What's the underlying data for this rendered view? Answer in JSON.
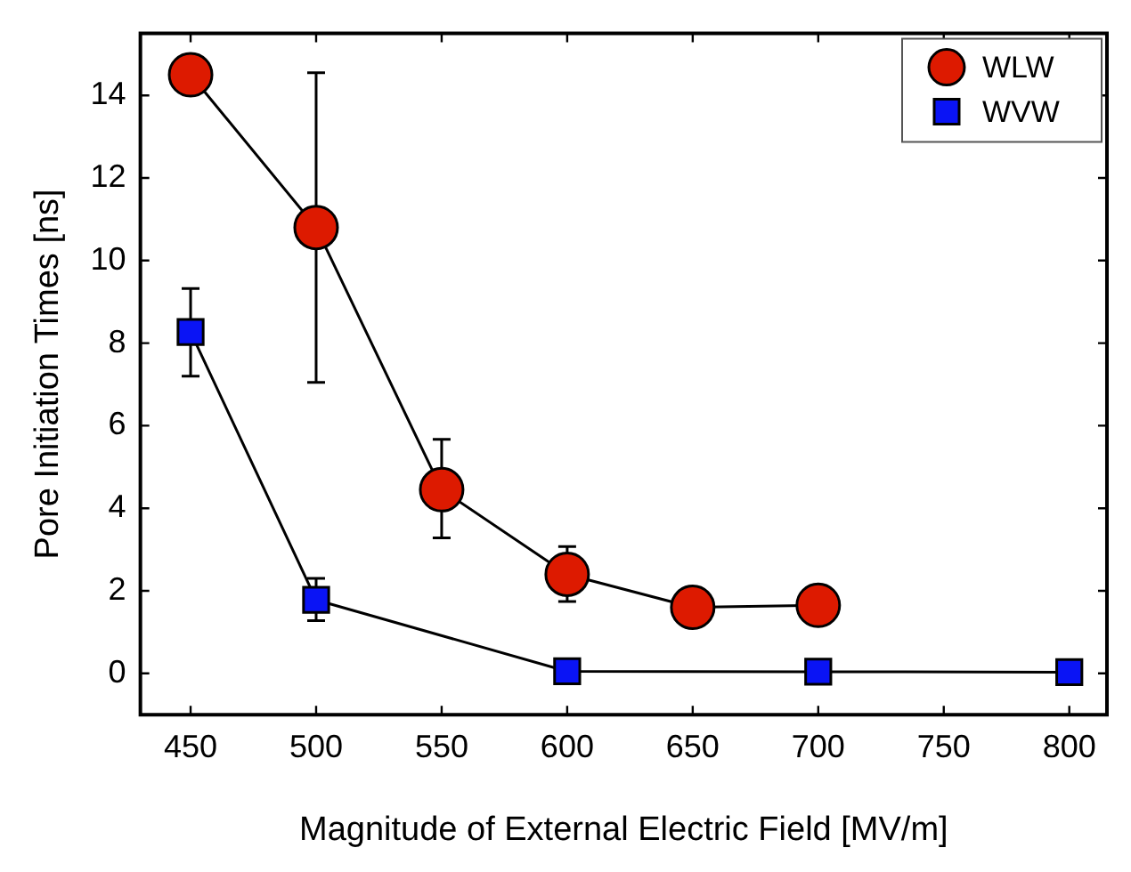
{
  "chart_data": {
    "type": "line",
    "xlabel": "Magnitude of External Electric Field [MV/m]",
    "ylabel": "Pore Initiation Times [ns]",
    "xlim": [
      430,
      815
    ],
    "xticks": [
      450,
      500,
      550,
      600,
      650,
      700,
      750,
      800
    ],
    "ylim": [
      -1,
      15.5
    ],
    "yticks": [
      0,
      2,
      4,
      6,
      8,
      10,
      12,
      14
    ],
    "grid": false,
    "legend": "top right",
    "series": [
      {
        "name": "WLW",
        "color": "#dd1a00",
        "marker": "circle",
        "x": [
          450,
          500,
          550,
          600,
          650,
          700
        ],
        "values": [
          14.5,
          10.8,
          4.45,
          2.4,
          1.6,
          1.65
        ],
        "errors": [
          null,
          [
            7.05,
            14.55
          ],
          [
            3.28,
            5.67
          ],
          [
            1.74,
            3.07
          ],
          null,
          null
        ]
      },
      {
        "name": "WVW",
        "color": "#0a14f5",
        "marker": "square",
        "x": [
          450,
          500,
          600,
          700,
          800
        ],
        "values": [
          8.27,
          1.78,
          0.05,
          0.04,
          0.03
        ],
        "errors": [
          [
            7.2,
            9.32
          ],
          [
            1.28,
            2.3
          ],
          null,
          null,
          null
        ]
      }
    ]
  }
}
